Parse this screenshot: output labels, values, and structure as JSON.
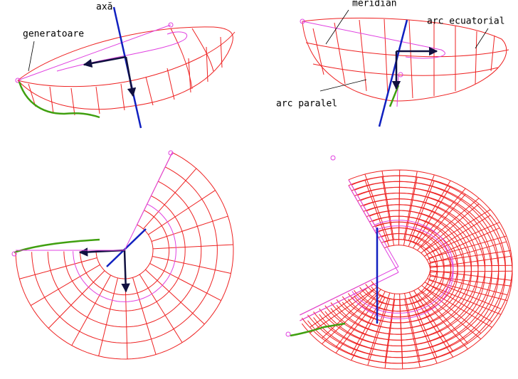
{
  "labels": {
    "axis": "axă",
    "generatrix": "generatoare",
    "meridian": "meridian",
    "equatorial_arc": "arc ecuatorial",
    "parallel_arc": "arc paralel"
  }
}
